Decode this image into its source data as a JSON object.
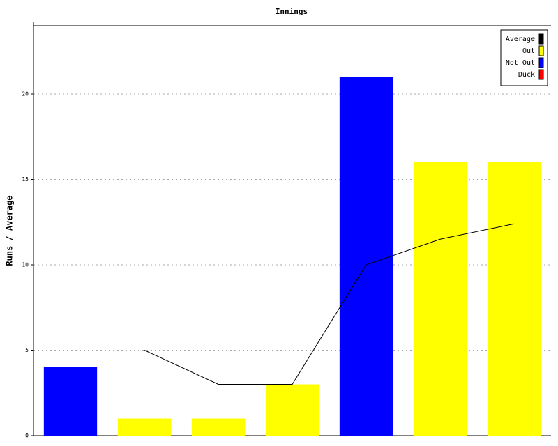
{
  "chart_data": {
    "type": "bar",
    "title": "Innings",
    "y_label": "Runs / Average",
    "categories": [
      null,
      null,
      null,
      null,
      null,
      null,
      null
    ],
    "series": [
      {
        "name": "Average",
        "type": "line",
        "color": "#000000",
        "values": [
          null,
          5,
          3,
          3,
          10,
          11.5,
          12.4
        ]
      },
      {
        "name": "Out",
        "type": "bar",
        "color": "#ffff00",
        "values": [
          null,
          1,
          1,
          3,
          null,
          16,
          16
        ]
      },
      {
        "name": "Not Out",
        "type": "bar",
        "color": "#0000ff",
        "values": [
          4,
          null,
          null,
          null,
          21,
          null,
          null
        ]
      },
      {
        "name": "Duck",
        "type": "bar",
        "color": "#ff0000",
        "values": [
          null,
          null,
          null,
          null,
          null,
          null,
          null
        ]
      }
    ],
    "ylim": [
      0,
      24
    ],
    "yticks": [
      0,
      5,
      10,
      15,
      20
    ],
    "grid": true,
    "legend": "top-right"
  }
}
